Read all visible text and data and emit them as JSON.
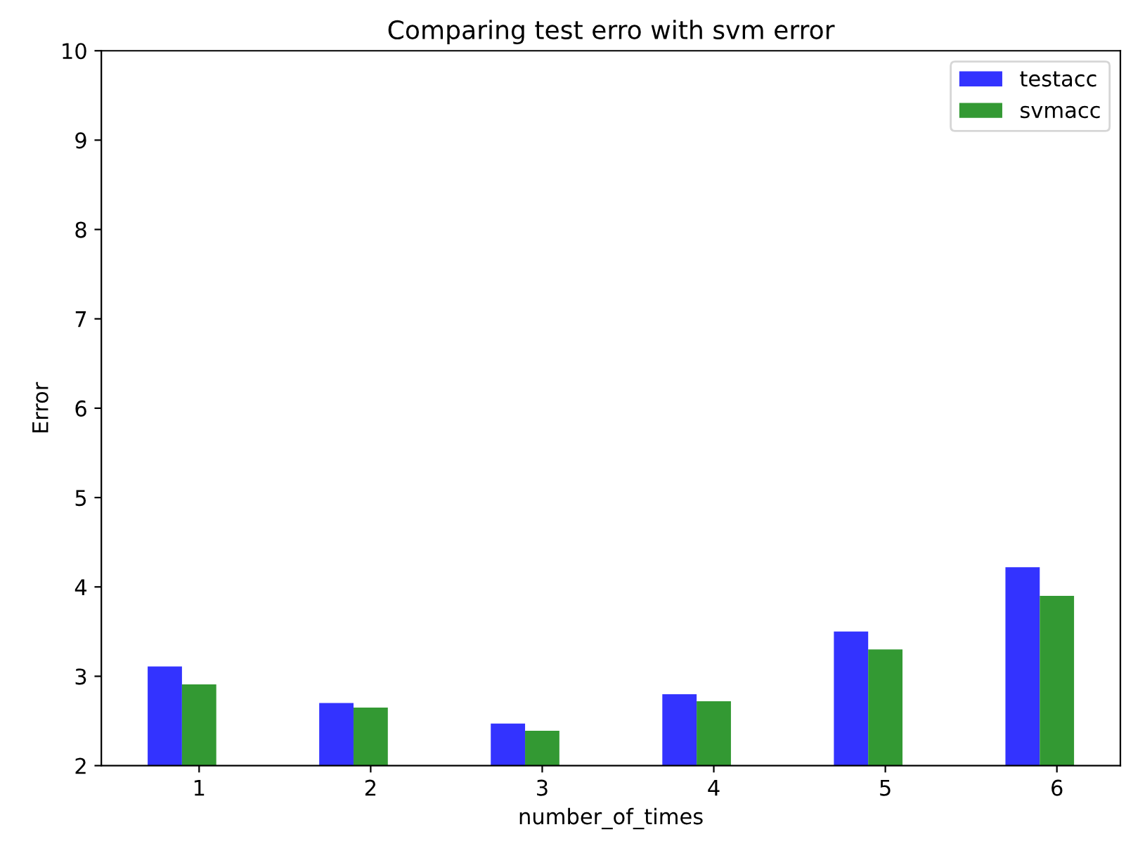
{
  "chart_data": {
    "type": "bar",
    "title": "Comparing test erro with svm error",
    "xlabel": "number_of_times",
    "ylabel": "Error",
    "categories": [
      "1",
      "2",
      "3",
      "4",
      "5",
      "6"
    ],
    "series": [
      {
        "name": "testacc",
        "color": "#3333ff",
        "values": [
          3.11,
          2.7,
          2.47,
          2.8,
          3.5,
          4.22
        ]
      },
      {
        "name": "svmacc",
        "color": "#339933",
        "values": [
          2.91,
          2.65,
          2.39,
          2.72,
          3.3,
          3.9
        ]
      }
    ],
    "ylim": [
      2,
      10
    ],
    "yticks": [
      2,
      3,
      4,
      5,
      6,
      7,
      8,
      9,
      10
    ],
    "legend": "top right",
    "grid": false
  }
}
